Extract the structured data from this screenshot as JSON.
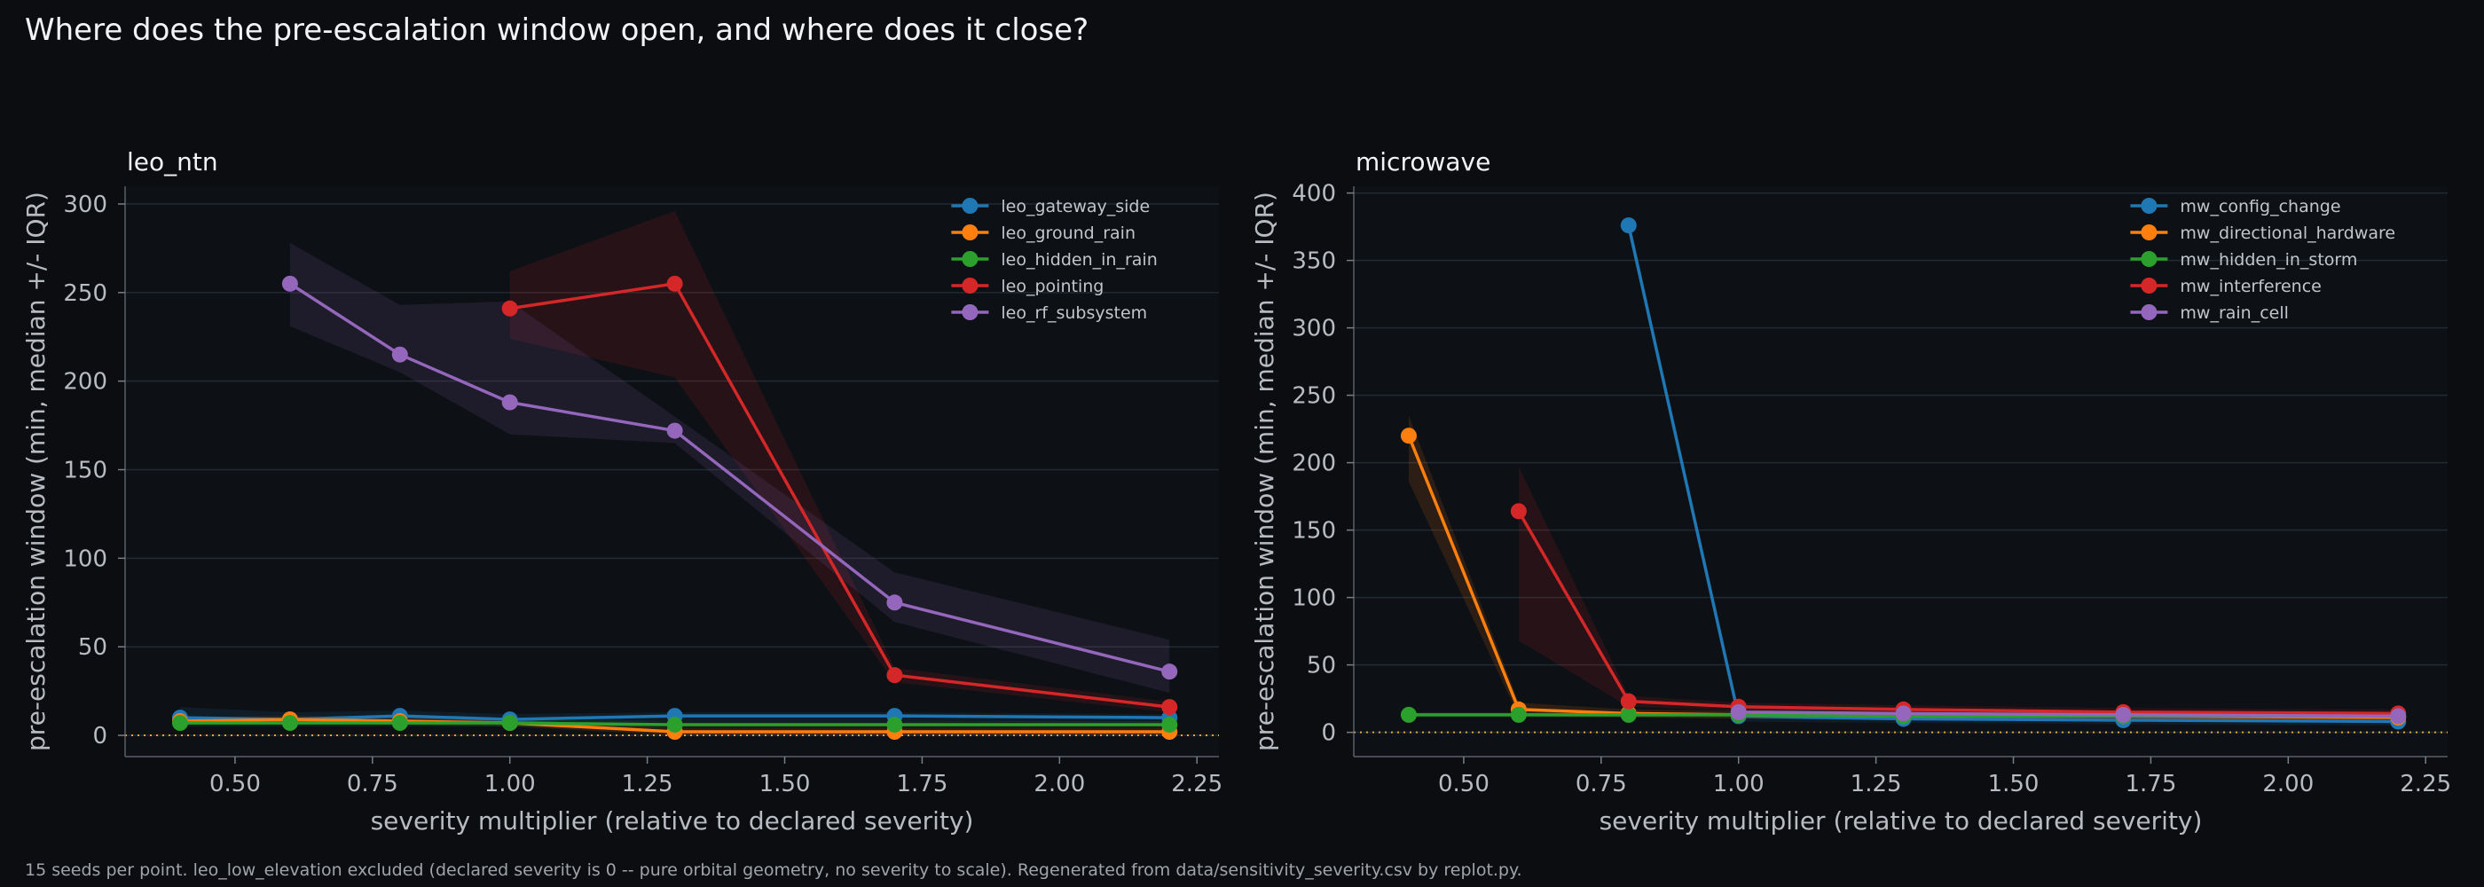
{
  "page": {
    "title": "Where does the pre-escalation window open, and where does it close?",
    "footnote": "15 seeds per point. leo_low_elevation excluded (declared severity is 0 -- pure orbital geometry, no severity to scale). Regenerated from data/sensitivity_severity.csv by replot.py."
  },
  "colors": {
    "background": "#0b0d10",
    "plot_background": "#0d1115",
    "grid": "#232a31",
    "reference_line": "#e8a33a",
    "blue": "#1f77b4",
    "orange": "#ff7f0e",
    "green": "#2ca02c",
    "red": "#d62728",
    "purple": "#9467bd"
  },
  "chart_data": [
    {
      "type": "line",
      "title": "leo_ntn",
      "xlabel": "severity multiplier (relative to declared severity)",
      "ylabel": "pre-escalation window (min, median +/- IQR)",
      "xlim": [
        0.3,
        2.29
      ],
      "ylim": [
        -12,
        310
      ],
      "xticks": [
        0.5,
        0.75,
        1.0,
        1.25,
        1.5,
        1.75,
        2.0,
        2.25
      ],
      "xtick_labels": [
        "0.50",
        "0.75",
        "1.00",
        "1.25",
        "1.50",
        "1.75",
        "2.00",
        "2.25"
      ],
      "yticks": [
        0,
        50,
        100,
        150,
        200,
        250,
        300
      ],
      "ytick_labels": [
        "0",
        "50",
        "100",
        "150",
        "200",
        "250",
        "300"
      ],
      "grid": "horizontal",
      "legend_position": "top-right",
      "reference_line_y": 0,
      "series": [
        {
          "name": "leo_gateway_side",
          "color": "#1f77b4",
          "x": [
            0.4,
            0.6,
            0.8,
            1.0,
            1.3,
            1.7,
            2.2
          ],
          "y": [
            10,
            9,
            11,
            9,
            11,
            11,
            10
          ],
          "low": [
            6,
            6,
            7,
            6,
            8,
            8,
            7
          ],
          "high": [
            16,
            13,
            14,
            12,
            13,
            13,
            12
          ]
        },
        {
          "name": "leo_ground_rain",
          "color": "#ff7f0e",
          "x": [
            0.4,
            0.6,
            0.8,
            1.0,
            1.3,
            1.7,
            2.2
          ],
          "y": [
            8,
            9,
            8,
            7,
            2,
            2,
            2
          ],
          "low": [
            6,
            7,
            6,
            5,
            0,
            0,
            0
          ],
          "high": [
            10,
            11,
            10,
            9,
            4,
            4,
            4
          ]
        },
        {
          "name": "leo_hidden_in_rain",
          "color": "#2ca02c",
          "x": [
            0.4,
            0.6,
            0.8,
            1.0,
            1.3,
            1.7,
            2.2
          ],
          "y": [
            7,
            7,
            7,
            7,
            6,
            6,
            6
          ],
          "low": [
            5,
            5,
            5,
            5,
            4,
            4,
            4
          ],
          "high": [
            9,
            9,
            9,
            9,
            8,
            8,
            8
          ]
        },
        {
          "name": "leo_pointing",
          "color": "#d62728",
          "x": [
            1.0,
            1.3,
            1.7,
            2.2
          ],
          "y": [
            241,
            255,
            34,
            16
          ],
          "low": [
            224,
            202,
            30,
            13
          ],
          "high": [
            262,
            296,
            38,
            19
          ]
        },
        {
          "name": "leo_rf_subsystem",
          "color": "#9467bd",
          "x": [
            0.6,
            0.8,
            1.0,
            1.3,
            1.7,
            2.2
          ],
          "y": [
            255,
            215,
            188,
            172,
            75,
            36
          ],
          "low": [
            231,
            205,
            170,
            165,
            64,
            24
          ],
          "high": [
            278,
            243,
            245,
            180,
            92,
            54
          ]
        }
      ]
    },
    {
      "type": "line",
      "title": "microwave",
      "xlabel": "severity multiplier (relative to declared severity)",
      "ylabel": "pre-escalation window (min, median +/- IQR)",
      "xlim": [
        0.3,
        2.29
      ],
      "ylim": [
        -18,
        405
      ],
      "xticks": [
        0.5,
        0.75,
        1.0,
        1.25,
        1.5,
        1.75,
        2.0,
        2.25
      ],
      "xtick_labels": [
        "0.50",
        "0.75",
        "1.00",
        "1.25",
        "1.50",
        "1.75",
        "2.00",
        "2.25"
      ],
      "yticks": [
        0,
        50,
        100,
        150,
        200,
        250,
        300,
        350,
        400
      ],
      "ytick_labels": [
        "0",
        "50",
        "100",
        "150",
        "200",
        "250",
        "300",
        "350",
        "400"
      ],
      "grid": "horizontal",
      "legend_position": "top-right",
      "reference_line_y": 0,
      "series": [
        {
          "name": "mw_config_change",
          "color": "#1f77b4",
          "x": [
            0.8,
            1.0,
            1.3,
            1.7,
            2.2
          ],
          "y": [
            376,
            12,
            10,
            9,
            8
          ],
          "low": [
            370,
            8,
            7,
            6,
            5
          ],
          "high": [
            382,
            16,
            13,
            12,
            11
          ]
        },
        {
          "name": "mw_directional_hardware",
          "color": "#ff7f0e",
          "x": [
            0.4,
            0.6,
            0.8,
            1.0,
            1.3,
            1.7,
            2.2
          ],
          "y": [
            220,
            17,
            14,
            13,
            12,
            12,
            11
          ],
          "low": [
            186,
            12,
            11,
            10,
            9,
            9,
            8
          ],
          "high": [
            235,
            22,
            17,
            16,
            15,
            15,
            14
          ]
        },
        {
          "name": "mw_hidden_in_storm",
          "color": "#2ca02c",
          "x": [
            0.4,
            0.6,
            0.8,
            1.0,
            1.3,
            1.7,
            2.2
          ],
          "y": [
            13,
            13,
            13,
            13,
            12,
            12,
            12
          ],
          "low": [
            11,
            11,
            11,
            11,
            10,
            10,
            10
          ],
          "high": [
            15,
            15,
            15,
            15,
            14,
            14,
            14
          ]
        },
        {
          "name": "mw_interference",
          "color": "#d62728",
          "x": [
            0.6,
            0.8,
            1.0,
            1.3,
            1.7,
            2.2
          ],
          "y": [
            164,
            23,
            19,
            17,
            15,
            14
          ],
          "low": [
            68,
            19,
            16,
            14,
            12,
            11
          ],
          "high": [
            197,
            27,
            22,
            20,
            18,
            17
          ]
        },
        {
          "name": "mw_rain_cell",
          "color": "#9467bd",
          "x": [
            1.0,
            1.3,
            1.7,
            2.2
          ],
          "y": [
            15,
            14,
            13,
            12
          ],
          "low": [
            12,
            11,
            10,
            9
          ],
          "high": [
            18,
            17,
            16,
            15
          ]
        }
      ]
    }
  ]
}
